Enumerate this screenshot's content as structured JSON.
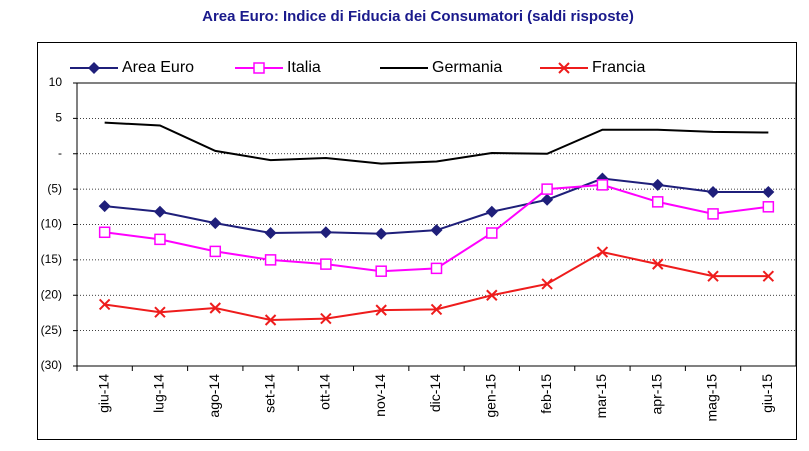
{
  "chart_data": {
    "type": "line",
    "title": "Area Euro: Indice di Fiducia dei Consumatori (saldi risposte)",
    "categories": [
      "giu-14",
      "lug-14",
      "ago-14",
      "set-14",
      "ott-14",
      "nov-14",
      "dic-14",
      "gen-15",
      "feb-15",
      "mar-15",
      "apr-15",
      "mag-15",
      "giu-15"
    ],
    "series": [
      {
        "name": "Area Euro",
        "color": "#1f1f7a",
        "marker": "diamond",
        "values": [
          -7.4,
          -8.2,
          -9.8,
          -11.2,
          -11.1,
          -11.3,
          -10.8,
          -8.2,
          -6.5,
          -3.5,
          -4.4,
          -5.4,
          -5.4
        ]
      },
      {
        "name": "Italia",
        "color": "#ff00ff",
        "marker": "square",
        "values": [
          -11.1,
          -12.1,
          -13.8,
          -15.0,
          -15.6,
          -16.6,
          -16.2,
          -11.2,
          -5.0,
          -4.4,
          -6.8,
          -8.5,
          -7.5
        ]
      },
      {
        "name": "Germania",
        "color": "#000000",
        "marker": "none",
        "values": [
          4.4,
          4.0,
          0.4,
          -0.9,
          -0.6,
          -1.4,
          -1.1,
          0.1,
          0,
          3.4,
          3.4,
          3.1,
          3.0
        ]
      },
      {
        "name": "Francia",
        "color": "#ee1c1c",
        "marker": "x",
        "values": [
          -21.3,
          -22.4,
          -21.8,
          -23.5,
          -23.3,
          -22.1,
          -22.0,
          -20.0,
          -18.4,
          -13.9,
          -15.6,
          -17.3,
          -17.3
        ]
      }
    ],
    "ylim": [
      -30,
      10
    ],
    "yticks": [
      {
        "value": -30,
        "label": "(30)"
      },
      {
        "value": -25,
        "label": "(25)"
      },
      {
        "value": -20,
        "label": "(20)"
      },
      {
        "value": -15,
        "label": "(15)"
      },
      {
        "value": -10,
        "label": "(10)"
      },
      {
        "value": -5,
        "label": "(5)"
      },
      {
        "value": 0,
        "label": "-"
      },
      5,
      10
    ],
    "grid": true,
    "legend": "top"
  }
}
